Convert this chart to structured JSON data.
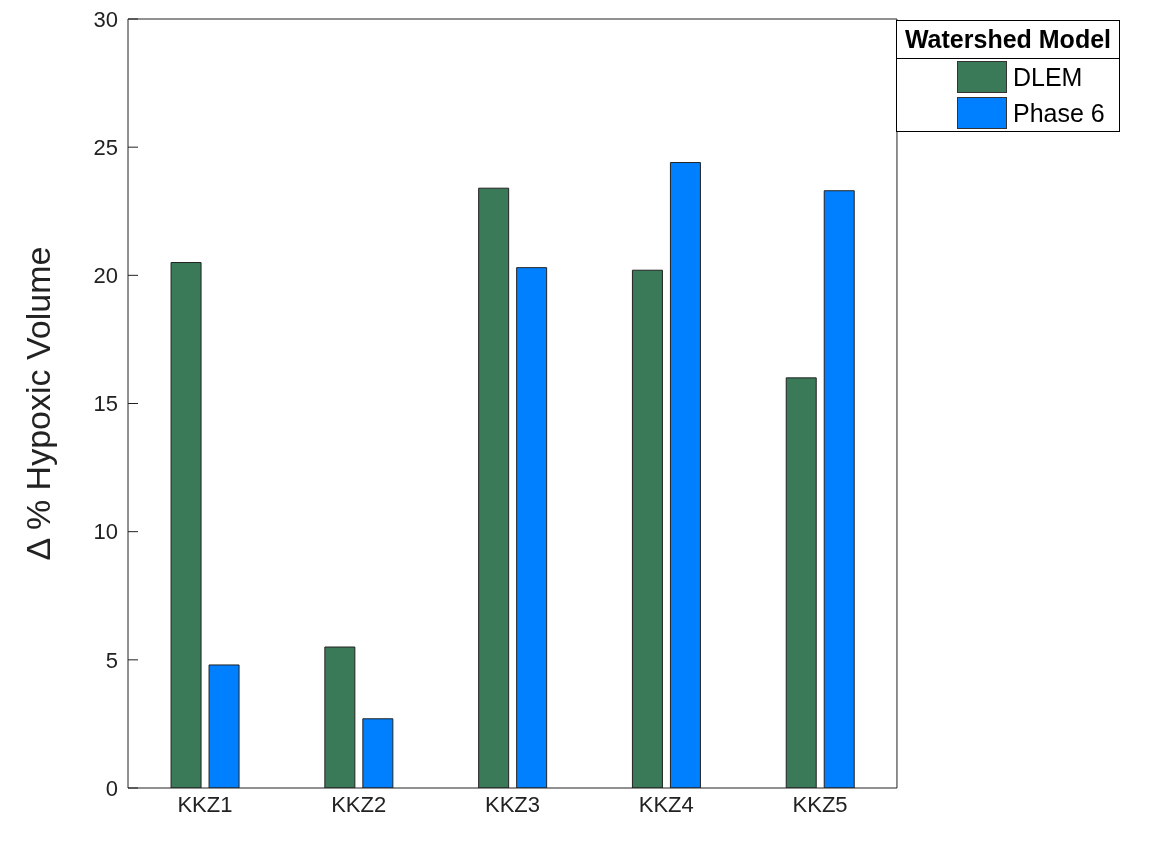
{
  "chart_data": {
    "type": "bar",
    "ylabel": "Δ % Hypoxic Volume",
    "legend_title": "Watershed Model",
    "categories": [
      "KKZ1",
      "KKZ2",
      "KKZ3",
      "KKZ4",
      "KKZ5"
    ],
    "series": [
      {
        "name": "DLEM",
        "color": "#3a7a58",
        "values": [
          20.5,
          5.5,
          23.4,
          20.2,
          16.0
        ]
      },
      {
        "name": "Phase 6",
        "color": "#0080ff",
        "values": [
          4.8,
          2.7,
          20.3,
          24.4,
          23.3
        ]
      }
    ],
    "ylim": [
      0,
      30
    ],
    "yticks": [
      0,
      5,
      10,
      15,
      20,
      25,
      30
    ],
    "grid": false,
    "legend": "top right"
  }
}
